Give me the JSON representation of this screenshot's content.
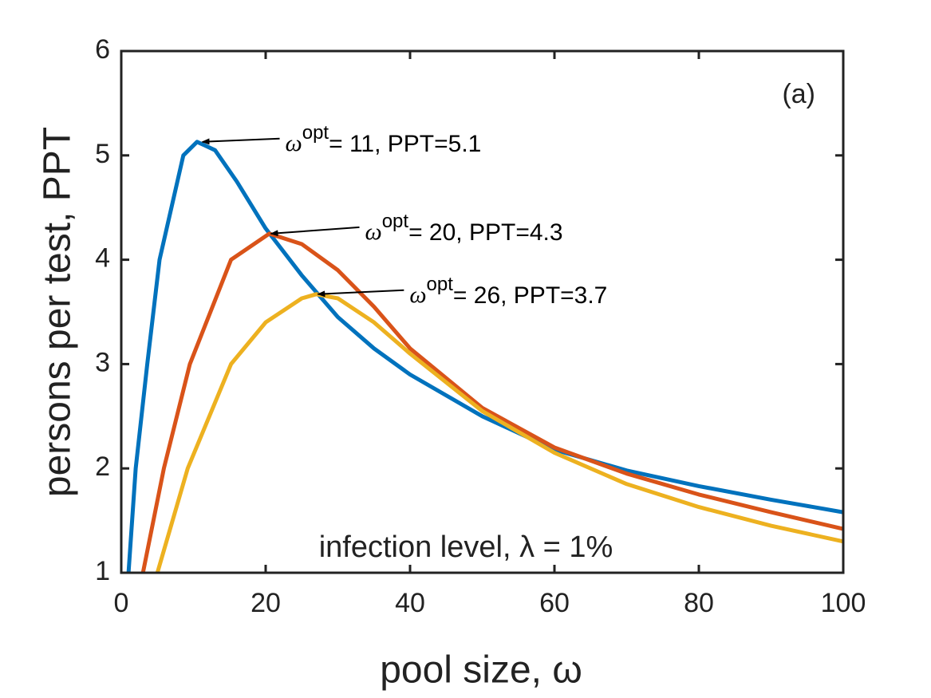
{
  "chart_data": {
    "type": "line",
    "xlabel": "pool size, ω",
    "ylabel": "persons per test, PPT",
    "panel_label": "(a)",
    "note": "infection level, λ = 1%",
    "xlim": [
      0,
      100
    ],
    "ylim": [
      1,
      6
    ],
    "xticks": [
      0,
      20,
      40,
      60,
      80,
      100
    ],
    "yticks": [
      1,
      2,
      3,
      4,
      5,
      6
    ],
    "series": [
      {
        "color": "#0072bd",
        "x": [
          1,
          2,
          3.6,
          5.3,
          8.6,
          10.5,
          13,
          16,
          20,
          25,
          30,
          35,
          40,
          50,
          60,
          70,
          80,
          90,
          100
        ],
        "values": [
          1.0,
          2.0,
          3.0,
          4.0,
          5.0,
          5.13,
          5.05,
          4.75,
          4.3,
          3.85,
          3.45,
          3.15,
          2.9,
          2.5,
          2.18,
          1.98,
          1.83,
          1.7,
          1.58
        ]
      },
      {
        "color": "#d95319",
        "x": [
          3,
          5.9,
          9.5,
          15.2,
          20.5,
          25,
          30,
          35,
          40,
          50,
          60,
          70,
          80,
          90,
          100
        ],
        "values": [
          1.0,
          2.0,
          3.0,
          4.0,
          4.25,
          4.15,
          3.9,
          3.55,
          3.15,
          2.58,
          2.2,
          1.95,
          1.75,
          1.58,
          1.42
        ]
      },
      {
        "color": "#edb120",
        "x": [
          5,
          9.2,
          15.2,
          20,
          25,
          27,
          30,
          35,
          40,
          50,
          60,
          70,
          80,
          90,
          100
        ],
        "values": [
          1.0,
          2.0,
          3.0,
          3.4,
          3.63,
          3.67,
          3.63,
          3.4,
          3.1,
          2.55,
          2.15,
          1.85,
          1.63,
          1.45,
          1.3
        ]
      }
    ],
    "annotations": [
      {
        "symbol": "ω",
        "sup": "opt",
        "text": "= 11, PPT=5.1",
        "x": 11,
        "y": 5.13
      },
      {
        "symbol": "ω",
        "sup": "opt",
        "text": "= 20, PPT=4.3",
        "x": 20.5,
        "y": 4.25
      },
      {
        "symbol": "ω",
        "sup": "opt",
        "text": "= 26, PPT=3.7",
        "x": 27,
        "y": 3.67
      }
    ]
  }
}
